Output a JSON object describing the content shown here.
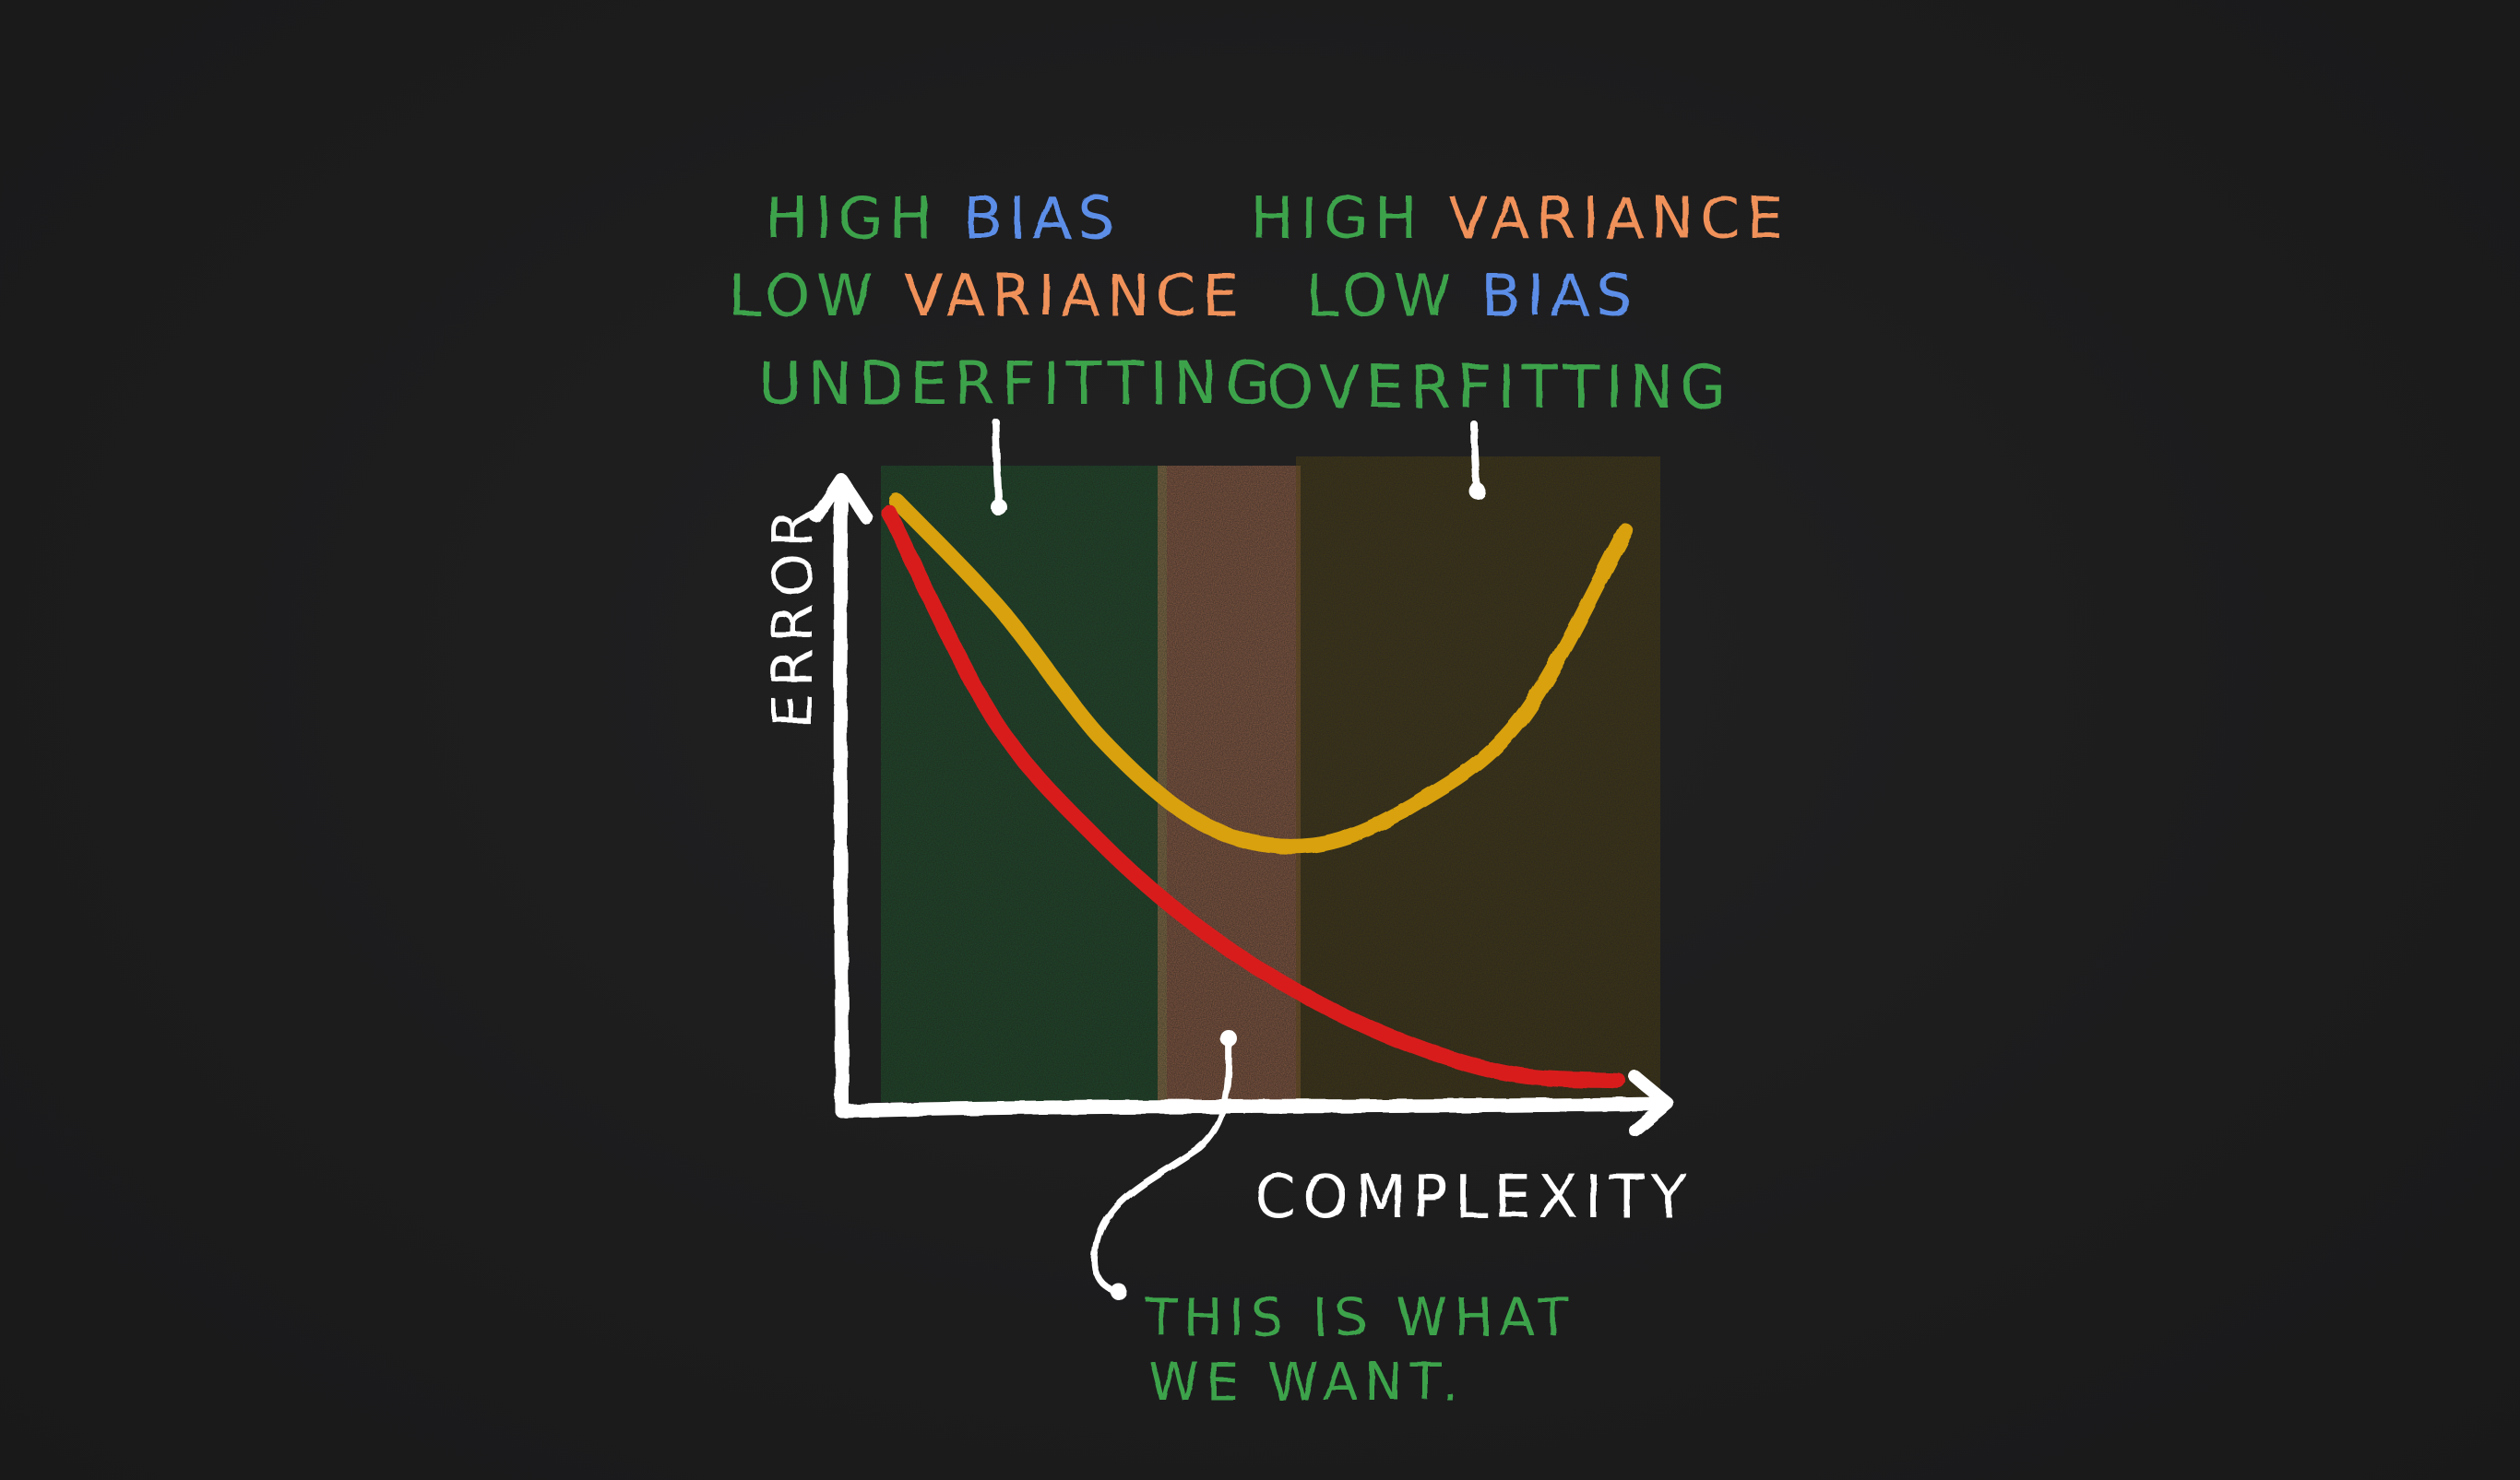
{
  "labels": {
    "left": {
      "line1_a": "HIGH ",
      "line1_b": "BIAS",
      "line2_a": "LOW ",
      "line2_b": "VARIANCE",
      "line3": "UNDERFITTING"
    },
    "right": {
      "line1_a": "HIGH ",
      "line1_b": "VARIANCE",
      "line2_a": "LOW ",
      "line2_b": "BIAS",
      "line3": "OVERFITTING"
    },
    "y_axis": "ERROR",
    "x_axis": "COMPLEXITY",
    "note_line1": "THIS IS WHAT",
    "note_line2": "WE WANT."
  },
  "colors": {
    "background": "#1c1c1d",
    "green_text": "#3ea34c",
    "blue_text": "#5b8ee8",
    "orange_text": "#f0915a",
    "axis": "#ffffff",
    "validation_curve": "#d8a10f",
    "training_curve": "#d81f1f",
    "zone_underfit": "#1f5a2c",
    "zone_sweetspot": "#b0704e",
    "zone_overfit": "#4f4214"
  },
  "chart_data": {
    "type": "line",
    "series": [
      {
        "values": [
          0.98,
          0.8,
          0.58,
          0.44,
          0.41,
          0.48,
          0.62,
          0.93
        ]
      },
      {
        "values": [
          0.96,
          0.62,
          0.42,
          0.27,
          0.16,
          0.08,
          0.03,
          0.02
        ]
      }
    ],
    "regions": [
      "UNDERFITTING",
      "",
      "OVERFITTING"
    ]
  }
}
